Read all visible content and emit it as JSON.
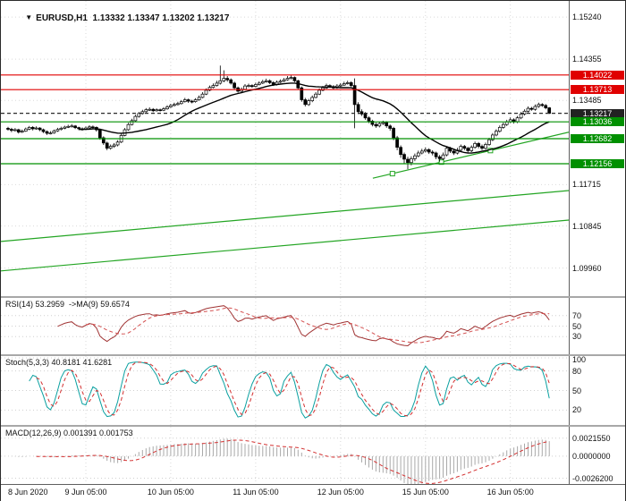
{
  "window": {
    "symbol": "EURUSD",
    "timeframe": "H1"
  },
  "header": {
    "menu_icon": "▼",
    "text": "EURUSD,H1  1.13332 1.13347 1.13202 1.13217"
  },
  "chart_data": [
    {
      "id": "price",
      "type": "candlestick",
      "title": "EURUSD,H1",
      "ohlc_display": {
        "open": "1.13332",
        "high": "1.13347",
        "low": "1.13202",
        "close": "1.13217"
      },
      "ylim": [
        1.0937,
        1.1558
      ],
      "ma_period": 21,
      "colors": {
        "bull": "#ffffff",
        "bear": "#000000",
        "outline": "#000000",
        "ma": "#000000",
        "resistance": "#e00000",
        "support": "#009000",
        "current": "#2a2a2a",
        "trendline": "#23a523",
        "grid": "#d9d9d9"
      },
      "scale_labels": [
        {
          "text": "1.15240",
          "price": 1.1524
        },
        {
          "text": "1.14355",
          "price": 1.14355
        },
        {
          "text": "1.13485",
          "price": 1.13485
        },
        {
          "text": "1.11715",
          "price": 1.11715
        },
        {
          "text": "1.10845",
          "price": 1.10845
        },
        {
          "text": "1.09960",
          "price": 1.0996
        }
      ],
      "levels": [
        {
          "text": "1.14022",
          "price": 1.14022,
          "kind": "resistance"
        },
        {
          "text": "1.13713",
          "price": 1.13713,
          "kind": "resistance"
        },
        {
          "text": "1.13217",
          "price": 1.13217,
          "kind": "current"
        },
        {
          "text": "1.13036",
          "price": 1.13036,
          "kind": "support"
        },
        {
          "text": "1.12682",
          "price": 1.12682,
          "kind": "support"
        },
        {
          "text": "1.12156",
          "price": 1.12156,
          "kind": "support"
        }
      ],
      "trendlines": [
        {
          "x1": 0.0,
          "p1": 1.099,
          "x2": 1.0,
          "p2": 1.1097
        },
        {
          "x1": 0.0,
          "p1": 1.1052,
          "x2": 1.0,
          "p2": 1.1159
        },
        {
          "x1": 0.655,
          "p1": 1.1185,
          "x2": 1.0,
          "p2": 1.1282,
          "selected": true,
          "handles": [
            0.1,
            0.35,
            0.6
          ]
        }
      ],
      "x_ticks": [
        {
          "label": "8 Jun 2020",
          "i": 0
        },
        {
          "label": "9 Jun 05:00",
          "i": 22
        },
        {
          "label": "10 Jun 05:00",
          "i": 46
        },
        {
          "label": "11 Jun 05:00",
          "i": 70
        },
        {
          "label": "12 Jun 05:00",
          "i": 94
        },
        {
          "label": "15 Jun 05:00",
          "i": 118
        },
        {
          "label": "16 Jun 05:00",
          "i": 142
        }
      ],
      "candles": [
        [
          1.129,
          1.1293,
          1.1285,
          1.1288
        ],
        [
          1.1288,
          1.1291,
          1.1282,
          1.12855
        ],
        [
          1.12855,
          1.12905,
          1.12835,
          1.1287
        ],
        [
          1.1287,
          1.1289,
          1.1279,
          1.1282
        ],
        [
          1.1282,
          1.12875,
          1.128,
          1.1284
        ],
        [
          1.1284,
          1.12915,
          1.12825,
          1.12885
        ],
        [
          1.12885,
          1.1295,
          1.1286,
          1.1292
        ],
        [
          1.1292,
          1.12945,
          1.12855,
          1.1289
        ],
        [
          1.1289,
          1.1294,
          1.1287,
          1.12905
        ],
        [
          1.12905,
          1.12925,
          1.1284,
          1.1287
        ],
        [
          1.1287,
          1.12895,
          1.128,
          1.1283
        ],
        [
          1.1283,
          1.12855,
          1.1276,
          1.12795
        ],
        [
          1.12795,
          1.1284,
          1.1277,
          1.128
        ],
        [
          1.128,
          1.12875,
          1.12785,
          1.12845
        ],
        [
          1.12845,
          1.1291,
          1.12825,
          1.12875
        ],
        [
          1.12875,
          1.12935,
          1.12855,
          1.129
        ],
        [
          1.129,
          1.12955,
          1.1288,
          1.12925
        ],
        [
          1.12925,
          1.12975,
          1.12905,
          1.1294
        ],
        [
          1.1294,
          1.1299,
          1.1292,
          1.1295
        ],
        [
          1.1295,
          1.1297,
          1.12885,
          1.12915
        ],
        [
          1.12915,
          1.12935,
          1.1286,
          1.1289
        ],
        [
          1.1289,
          1.1292,
          1.1285,
          1.1288
        ],
        [
          1.1288,
          1.1294,
          1.12865,
          1.12905
        ],
        [
          1.12905,
          1.12965,
          1.1289,
          1.1293
        ],
        [
          1.1293,
          1.1296,
          1.12895,
          1.1292
        ],
        [
          1.1292,
          1.1294,
          1.1283,
          1.1287
        ],
        [
          1.1287,
          1.1289,
          1.1266,
          1.127
        ],
        [
          1.127,
          1.1273,
          1.1255,
          1.1259
        ],
        [
          1.1259,
          1.1262,
          1.1244,
          1.1248
        ],
        [
          1.1248,
          1.1256,
          1.1245,
          1.1252
        ],
        [
          1.1252,
          1.1259,
          1.1249,
          1.1255
        ],
        [
          1.1255,
          1.1265,
          1.1252,
          1.1261
        ],
        [
          1.1261,
          1.1279,
          1.1259,
          1.1275
        ],
        [
          1.1275,
          1.12905,
          1.1273,
          1.1287
        ],
        [
          1.1287,
          1.13015,
          1.1285,
          1.1298
        ],
        [
          1.1298,
          1.131,
          1.1296,
          1.1306
        ],
        [
          1.1306,
          1.13185,
          1.1304,
          1.1315
        ],
        [
          1.1315,
          1.13245,
          1.13125,
          1.1321
        ],
        [
          1.1321,
          1.1329,
          1.1319,
          1.1325
        ],
        [
          1.1325,
          1.13325,
          1.1323,
          1.1329
        ],
        [
          1.1329,
          1.1334,
          1.13265,
          1.133
        ],
        [
          1.133,
          1.13325,
          1.1324,
          1.1327
        ],
        [
          1.1327,
          1.1332,
          1.1325,
          1.1329
        ],
        [
          1.1329,
          1.13315,
          1.13255,
          1.1328
        ],
        [
          1.1328,
          1.13345,
          1.1326,
          1.1331
        ],
        [
          1.1331,
          1.13385,
          1.1329,
          1.1335
        ],
        [
          1.1335,
          1.13415,
          1.1333,
          1.1338
        ],
        [
          1.1338,
          1.1344,
          1.1336,
          1.134
        ],
        [
          1.134,
          1.1346,
          1.1338,
          1.1342
        ],
        [
          1.1342,
          1.13495,
          1.134,
          1.1346
        ],
        [
          1.1346,
          1.1354,
          1.1344,
          1.135
        ],
        [
          1.135,
          1.13525,
          1.13435,
          1.1347
        ],
        [
          1.1347,
          1.135,
          1.13425,
          1.1346
        ],
        [
          1.1346,
          1.13535,
          1.1344,
          1.135
        ],
        [
          1.135,
          1.1359,
          1.1348,
          1.1355
        ],
        [
          1.1355,
          1.1366,
          1.1353,
          1.1362
        ],
        [
          1.1362,
          1.1374,
          1.136,
          1.137
        ],
        [
          1.137,
          1.138,
          1.1368,
          1.1376
        ],
        [
          1.1376,
          1.13845,
          1.1374,
          1.138
        ],
        [
          1.138,
          1.139,
          1.1378,
          1.1385
        ],
        [
          1.1385,
          1.1422,
          1.1382,
          1.139
        ],
        [
          1.139,
          1.1412,
          1.1387,
          1.1395
        ],
        [
          1.1395,
          1.14,
          1.1388,
          1.1392
        ],
        [
          1.1392,
          1.1395,
          1.1382,
          1.1385
        ],
        [
          1.1385,
          1.1388,
          1.1372,
          1.1375
        ],
        [
          1.1375,
          1.1378,
          1.1365,
          1.1368
        ],
        [
          1.1368,
          1.1376,
          1.13655,
          1.1372
        ],
        [
          1.1372,
          1.1383,
          1.137,
          1.1379
        ],
        [
          1.1379,
          1.1384,
          1.1376,
          1.138
        ],
        [
          1.138,
          1.13825,
          1.1375,
          1.1378
        ],
        [
          1.1378,
          1.1386,
          1.1376,
          1.1382
        ],
        [
          1.1382,
          1.1389,
          1.138,
          1.1385
        ],
        [
          1.1385,
          1.1392,
          1.1383,
          1.1388
        ],
        [
          1.1388,
          1.13945,
          1.1386,
          1.139
        ],
        [
          1.139,
          1.1393,
          1.1383,
          1.1386
        ],
        [
          1.1386,
          1.1389,
          1.1379,
          1.1382
        ],
        [
          1.1382,
          1.13905,
          1.138,
          1.1387
        ],
        [
          1.1387,
          1.1393,
          1.1385,
          1.1389
        ],
        [
          1.1389,
          1.1396,
          1.1387,
          1.1392
        ],
        [
          1.1392,
          1.14,
          1.139,
          1.1395
        ],
        [
          1.1395,
          1.1401,
          1.1393,
          1.1397
        ],
        [
          1.1397,
          1.1399,
          1.1387,
          1.139
        ],
        [
          1.139,
          1.1392,
          1.1372,
          1.1375
        ],
        [
          1.1375,
          1.1378,
          1.1346,
          1.135
        ],
        [
          1.135,
          1.1354,
          1.1336,
          1.134
        ],
        [
          1.134,
          1.1352,
          1.1337,
          1.1348
        ],
        [
          1.1348,
          1.1359,
          1.1345,
          1.1355
        ],
        [
          1.1355,
          1.1366,
          1.1353,
          1.1362
        ],
        [
          1.1362,
          1.1374,
          1.136,
          1.137
        ],
        [
          1.137,
          1.1379,
          1.1368,
          1.1375
        ],
        [
          1.1375,
          1.1384,
          1.1373,
          1.138
        ],
        [
          1.138,
          1.13825,
          1.1375,
          1.1378
        ],
        [
          1.1378,
          1.1381,
          1.1372,
          1.1375
        ],
        [
          1.1375,
          1.1383,
          1.1373,
          1.1379
        ],
        [
          1.1379,
          1.1385,
          1.1377,
          1.1381
        ],
        [
          1.1381,
          1.1388,
          1.1379,
          1.1384
        ],
        [
          1.1384,
          1.139,
          1.1382,
          1.1386
        ],
        [
          1.1386,
          1.1389,
          1.1377,
          1.138
        ],
        [
          1.138,
          1.1395,
          1.129,
          1.134
        ],
        [
          1.134,
          1.1345,
          1.132,
          1.1325
        ],
        [
          1.1325,
          1.133,
          1.1316,
          1.132
        ],
        [
          1.132,
          1.1324,
          1.1308,
          1.1312
        ],
        [
          1.1312,
          1.1315,
          1.1301,
          1.1305
        ],
        [
          1.1305,
          1.1308,
          1.1294,
          1.1298
        ],
        [
          1.1298,
          1.1302,
          1.1291,
          1.1295
        ],
        [
          1.1295,
          1.1304,
          1.1292,
          1.13
        ],
        [
          1.13,
          1.1306,
          1.1297,
          1.1302
        ],
        [
          1.1302,
          1.1305,
          1.1291,
          1.1295
        ],
        [
          1.1295,
          1.1298,
          1.1285,
          1.129
        ],
        [
          1.129,
          1.1293,
          1.1265,
          1.127
        ],
        [
          1.127,
          1.1274,
          1.1244,
          1.125
        ],
        [
          1.125,
          1.1254,
          1.1228,
          1.1235
        ],
        [
          1.1235,
          1.1239,
          1.1215,
          1.1225
        ],
        [
          1.1225,
          1.123,
          1.1204,
          1.1218
        ],
        [
          1.1218,
          1.1231,
          1.1212,
          1.1226
        ],
        [
          1.1226,
          1.1237,
          1.1221,
          1.1232
        ],
        [
          1.1232,
          1.1243,
          1.1229,
          1.1238
        ],
        [
          1.1238,
          1.1247,
          1.1235,
          1.1242
        ],
        [
          1.1242,
          1.125,
          1.1239,
          1.1245
        ],
        [
          1.1245,
          1.1248,
          1.1236,
          1.124
        ],
        [
          1.124,
          1.1244,
          1.1233,
          1.1238
        ],
        [
          1.1238,
          1.1241,
          1.1225,
          1.123
        ],
        [
          1.123,
          1.1234,
          1.122,
          1.1226
        ],
        [
          1.1226,
          1.1239,
          1.1223,
          1.1234
        ],
        [
          1.1234,
          1.1252,
          1.1231,
          1.1248
        ],
        [
          1.1248,
          1.1251,
          1.1238,
          1.1242
        ],
        [
          1.1242,
          1.1246,
          1.1234,
          1.1238
        ],
        [
          1.1238,
          1.1249,
          1.1235,
          1.1244
        ],
        [
          1.1244,
          1.1256,
          1.1241,
          1.1252
        ],
        [
          1.1252,
          1.1255,
          1.1244,
          1.1248
        ],
        [
          1.1248,
          1.1251,
          1.1239,
          1.1243
        ],
        [
          1.1243,
          1.1254,
          1.124,
          1.125
        ],
        [
          1.125,
          1.1262,
          1.1247,
          1.1258
        ],
        [
          1.1258,
          1.1261,
          1.1248,
          1.1252
        ],
        [
          1.1252,
          1.1256,
          1.1244,
          1.1248
        ],
        [
          1.1248,
          1.126,
          1.1245,
          1.1256
        ],
        [
          1.1256,
          1.127,
          1.1253,
          1.1266
        ],
        [
          1.1266,
          1.128,
          1.1263,
          1.1276
        ],
        [
          1.1276,
          1.1288,
          1.1273,
          1.1284
        ],
        [
          1.1284,
          1.1296,
          1.1281,
          1.1292
        ],
        [
          1.1292,
          1.1302,
          1.1289,
          1.1298
        ],
        [
          1.1298,
          1.1308,
          1.1295,
          1.1304
        ],
        [
          1.1304,
          1.1313,
          1.1301,
          1.1308
        ],
        [
          1.1308,
          1.1311,
          1.13,
          1.1304
        ],
        [
          1.1304,
          1.1316,
          1.1301,
          1.1312
        ],
        [
          1.1312,
          1.1324,
          1.1309,
          1.132
        ],
        [
          1.132,
          1.133,
          1.1317,
          1.1326
        ],
        [
          1.1326,
          1.1336,
          1.1323,
          1.1332
        ],
        [
          1.1332,
          1.1335,
          1.1327,
          1.133
        ],
        [
          1.133,
          1.134,
          1.1327,
          1.1336
        ],
        [
          1.1336,
          1.1344,
          1.1333,
          1.134
        ],
        [
          1.134,
          1.1343,
          1.1335,
          1.1338
        ],
        [
          1.1338,
          1.1341,
          1.133,
          1.13332
        ],
        [
          1.13332,
          1.13347,
          1.13202,
          1.13217
        ]
      ]
    },
    {
      "id": "rsi",
      "type": "line",
      "header": "RSI(14) 53.2959  ->MA(9) 59.6574",
      "period": 14,
      "ma_period": 9,
      "last": 53.2959,
      "ma_last": 59.6574,
      "ylim": [
        0,
        100
      ],
      "grid": [
        {
          "text": "70",
          "value": 70
        },
        {
          "text": "50",
          "value": 50
        },
        {
          "text": "30",
          "value": 30
        }
      ],
      "colors": {
        "line": "#a03333",
        "ma": "#d34f4f"
      }
    },
    {
      "id": "stoch",
      "type": "line",
      "header": "Stoch(5,3,3) 40.8181 41.6281",
      "k": 5,
      "slowing": 3,
      "d": 3,
      "k_last": 40.8181,
      "d_last": 41.6281,
      "ylim": [
        0,
        100
      ],
      "grid": [
        {
          "text": "100",
          "value": 100
        },
        {
          "text": "80",
          "value": 80
        },
        {
          "text": "50",
          "value": 50
        },
        {
          "text": "20",
          "value": 20
        }
      ],
      "colors": {
        "k": "#0aa0a0",
        "d": "#d32f2f"
      }
    },
    {
      "id": "macd",
      "type": "histogram+line",
      "header": "MACD(12,26,9) 0.001391 0.001753",
      "fast": 12,
      "slow": 26,
      "signal": 9,
      "macd_last": 0.001391,
      "signal_last": 0.001753,
      "ylim": [
        -0.0031,
        0.0033
      ],
      "grid": [
        {
          "text": "0.0021550",
          "value": 0.002155
        },
        {
          "text": "0.0000000",
          "value": 0
        },
        {
          "text": "-0.0026200",
          "value": -0.00262
        }
      ],
      "colors": {
        "hist": "#a9a9a9",
        "signal": "#d32f2f"
      }
    }
  ]
}
